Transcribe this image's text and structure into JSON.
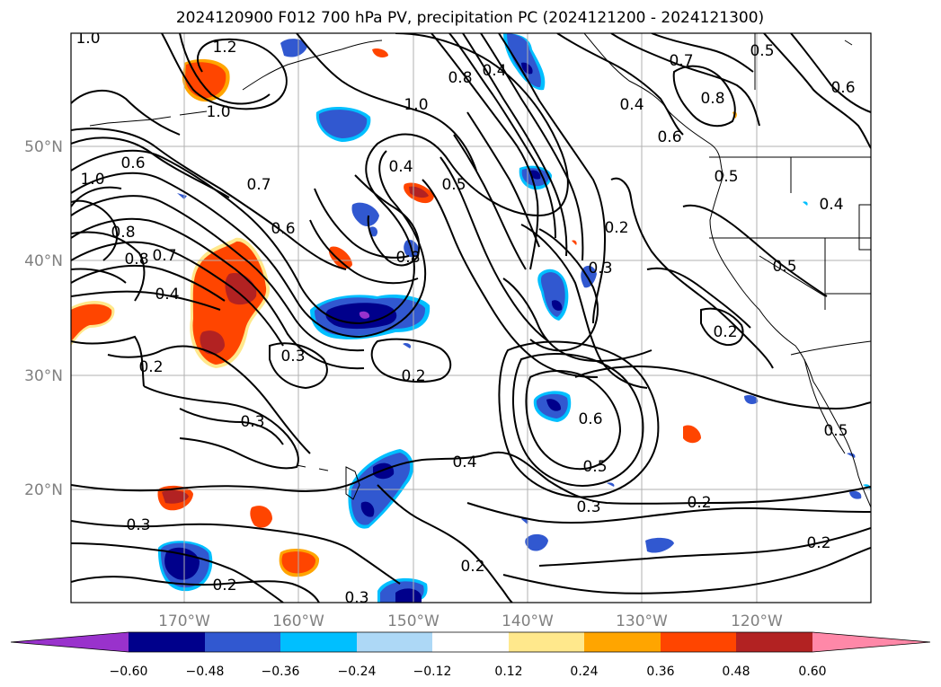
{
  "title": "2024120900 F012 700 hPa PV, precipitation PC (2024121200 - 2024121300)",
  "lat_labels": [
    "50°N",
    "40°N",
    "30°N",
    "20°N"
  ],
  "lon_labels": [
    "170°W",
    "160°W",
    "150°W",
    "140°W",
    "130°W",
    "120°W"
  ],
  "colorbar": {
    "tick_labels": [
      "−0.60",
      "−0.48",
      "−0.36",
      "−0.24",
      "−0.12",
      "0.12",
      "0.24",
      "0.36",
      "0.48",
      "0.60"
    ],
    "colors": [
      "#9932cc",
      "#00008b",
      "#3158d0",
      "#00bfff",
      "#add8f6",
      "#ffffff",
      "#ffe88c",
      "#ffa500",
      "#ff4500",
      "#b22222",
      "#ff88a8"
    ]
  },
  "contour_labels": {
    "l1": "1.0",
    "l2": "1.2",
    "l3": "1.0",
    "l4": "0.8",
    "l5": "0.4",
    "l6": "1.0",
    "l7": "0.5",
    "l8": "0.6",
    "l9": "1.0",
    "l10": "0.7",
    "l11": "0.6",
    "l12": "0.4",
    "l13": "0.5",
    "l14": "0.8",
    "l15": "0.2",
    "l16": "0.3",
    "l17": "0.4",
    "l18": "0.7",
    "l19": "0.8",
    "l20": "0.6",
    "l21": "0.8",
    "l22": "0.8",
    "l23": "0.7",
    "l24": "0.4",
    "l25": "0.3",
    "l26": "0.2",
    "l27": "0.2",
    "l28": "0.3",
    "l29": "0.6",
    "l30": "0.5",
    "l31": "0.4",
    "l32": "0.3",
    "l33": "0.2",
    "l34": "0.3",
    "l35": "0.2",
    "l36": "0.2",
    "l37": "0.2",
    "l38": "0.3",
    "l39": "0.5",
    "l40": "0.2",
    "l41": "0.5",
    "l42": "0.4",
    "l43": "0.5",
    "l44": "0.6"
  },
  "colors": {
    "precip_positive": "#ff4500",
    "precip_strong_positive": "#b22222",
    "precip_weak_positive": "#ffa500",
    "precip_negative": "#3158d0",
    "precip_strong_negative": "#00008b",
    "precip_weak_negative": "#00bfff",
    "precip_extreme_negative": "#9932cc"
  }
}
